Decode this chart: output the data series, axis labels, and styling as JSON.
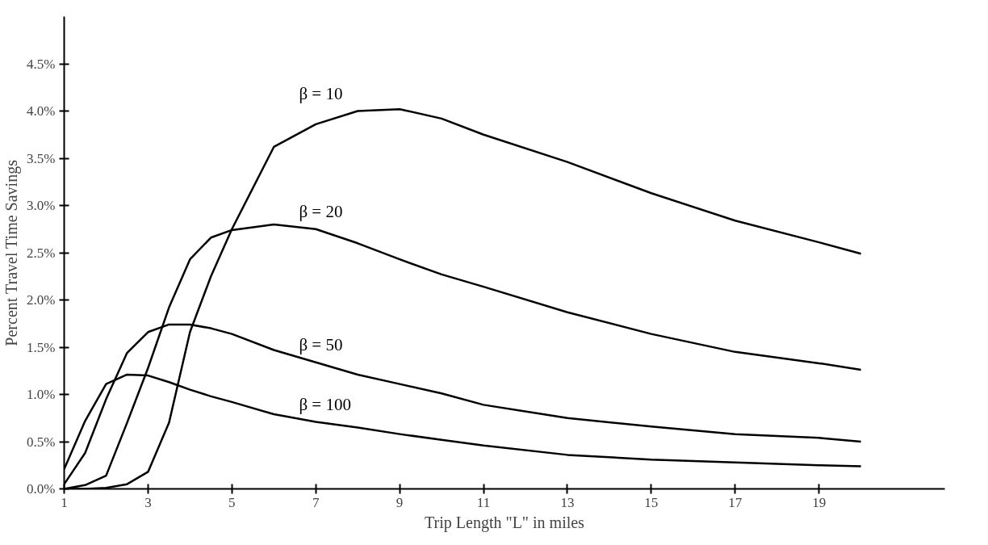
{
  "chart_data": {
    "type": "line",
    "xlabel": "Trip Length \"L\" in miles",
    "ylabel": "Percent Travel Time Savings",
    "xlim": [
      1,
      22
    ],
    "ylim": [
      0,
      5
    ],
    "xticks": [
      1,
      3,
      5,
      7,
      9,
      11,
      13,
      15,
      17,
      19
    ],
    "yticks": [
      {
        "value": 0,
        "label": "0.0%"
      },
      {
        "value": 0.5,
        "label": "0.5%"
      },
      {
        "value": 1,
        "label": "1.0%"
      },
      {
        "value": 1.5,
        "label": "1.5%"
      },
      {
        "value": 2,
        "label": "2.0%"
      },
      {
        "value": 2.5,
        "label": "2.5%"
      },
      {
        "value": 3,
        "label": "3.0%"
      },
      {
        "value": 3.5,
        "label": "3.5%"
      },
      {
        "value": 4,
        "label": "4.0%"
      },
      {
        "value": 4.5,
        "label": "4.5%"
      }
    ],
    "grid": false,
    "marker": "none",
    "line_style": "solid",
    "x": [
      1,
      1.5,
      2,
      2.5,
      3,
      3.5,
      4,
      4.5,
      5,
      6,
      7,
      8,
      9,
      10,
      11,
      13,
      15,
      17,
      19,
      20
    ],
    "series": [
      {
        "name": "β = 10",
        "color": "#000000",
        "values": [
          0,
          0,
          0.01,
          0.05,
          0.18,
          0.7,
          1.66,
          2.25,
          2.75,
          3.62,
          3.86,
          4.0,
          4.02,
          3.92,
          3.75,
          3.46,
          3.13,
          2.84,
          2.61,
          2.49
        ]
      },
      {
        "name": "β = 20",
        "color": "#000000",
        "values": [
          0,
          0.04,
          0.14,
          0.7,
          1.28,
          1.92,
          2.43,
          2.66,
          2.74,
          2.8,
          2.75,
          2.6,
          2.43,
          2.27,
          2.14,
          1.87,
          1.64,
          1.45,
          1.33,
          1.26
        ]
      },
      {
        "name": "β = 50",
        "color": "#000000",
        "values": [
          0.05,
          0.38,
          0.95,
          1.44,
          1.66,
          1.74,
          1.74,
          1.7,
          1.64,
          1.47,
          1.34,
          1.21,
          1.11,
          1.01,
          0.89,
          0.75,
          0.66,
          0.58,
          0.54,
          0.5
        ]
      },
      {
        "name": "β = 100",
        "color": "#000000",
        "values": [
          0.21,
          0.72,
          1.11,
          1.21,
          1.2,
          1.13,
          1.05,
          0.98,
          0.92,
          0.79,
          0.71,
          0.65,
          0.58,
          0.52,
          0.46,
          0.36,
          0.31,
          0.28,
          0.25,
          0.24
        ]
      }
    ]
  }
}
